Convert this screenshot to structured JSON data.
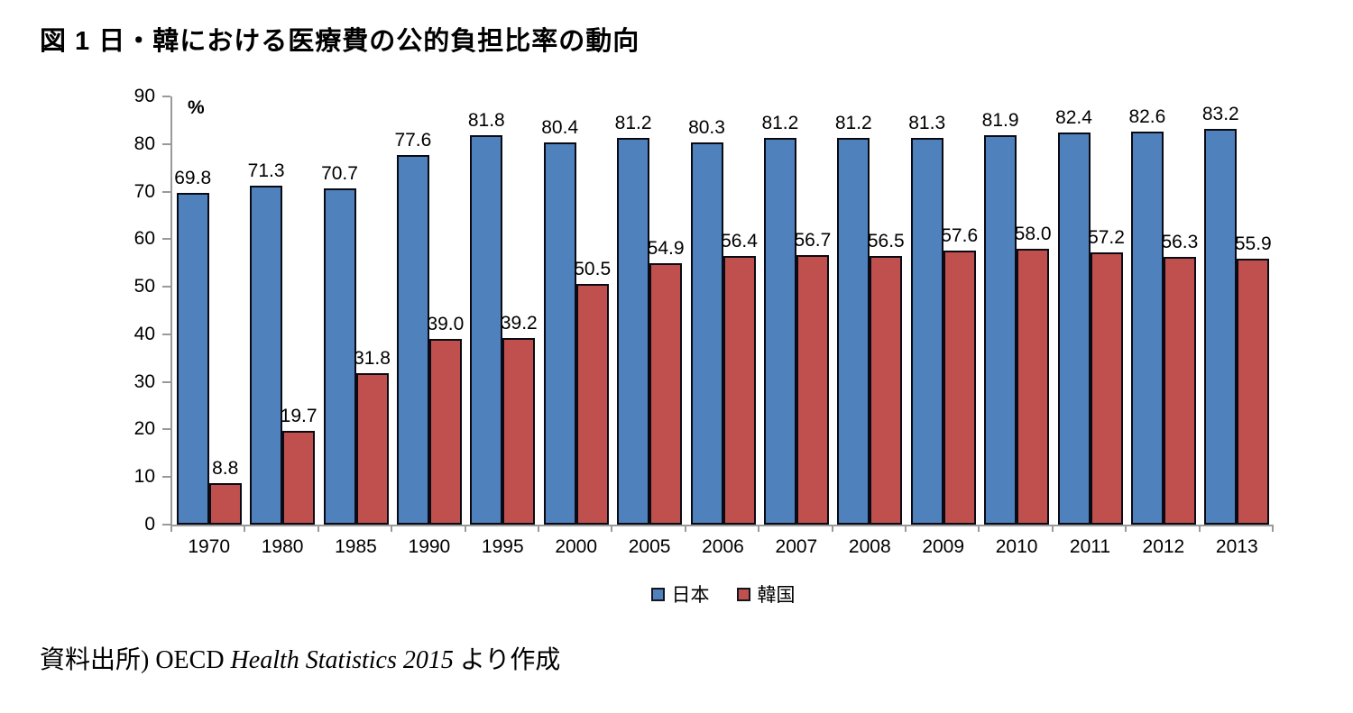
{
  "title": "図 1 日・韓における医療費の公的負担比率の動向",
  "chart_data": {
    "type": "bar",
    "title": "図 1 日・韓における医療費の公的負担比率の動向",
    "unit_label": "%",
    "categories": [
      "1970",
      "1980",
      "1985",
      "1990",
      "1995",
      "2000",
      "2005",
      "2006",
      "2007",
      "2008",
      "2009",
      "2010",
      "2011",
      "2012",
      "2013"
    ],
    "series": [
      {
        "key": "japan",
        "name": "日本",
        "color": "#4F81BD",
        "values": [
          69.8,
          71.3,
          70.7,
          77.6,
          81.8,
          80.4,
          81.2,
          80.3,
          81.2,
          81.2,
          81.3,
          81.9,
          82.4,
          82.6,
          83.2
        ]
      },
      {
        "key": "korea",
        "name": "韓国",
        "color": "#C0504D",
        "values": [
          8.8,
          19.7,
          31.8,
          39.0,
          39.2,
          50.5,
          54.9,
          56.4,
          56.7,
          56.5,
          57.6,
          58.0,
          57.2,
          56.3,
          55.9
        ]
      }
    ],
    "ylim": [
      0,
      90
    ],
    "yticks": [
      0,
      10,
      20,
      30,
      40,
      50,
      60,
      70,
      80,
      90
    ],
    "grid": false,
    "legend_position": "bottom",
    "bar_border_color": "#0a0a14",
    "axis_color": "#999999"
  },
  "source": {
    "prefix": "資料出所) OECD ",
    "italic": "Health Statistics 2015",
    "suffix": " より作成"
  }
}
